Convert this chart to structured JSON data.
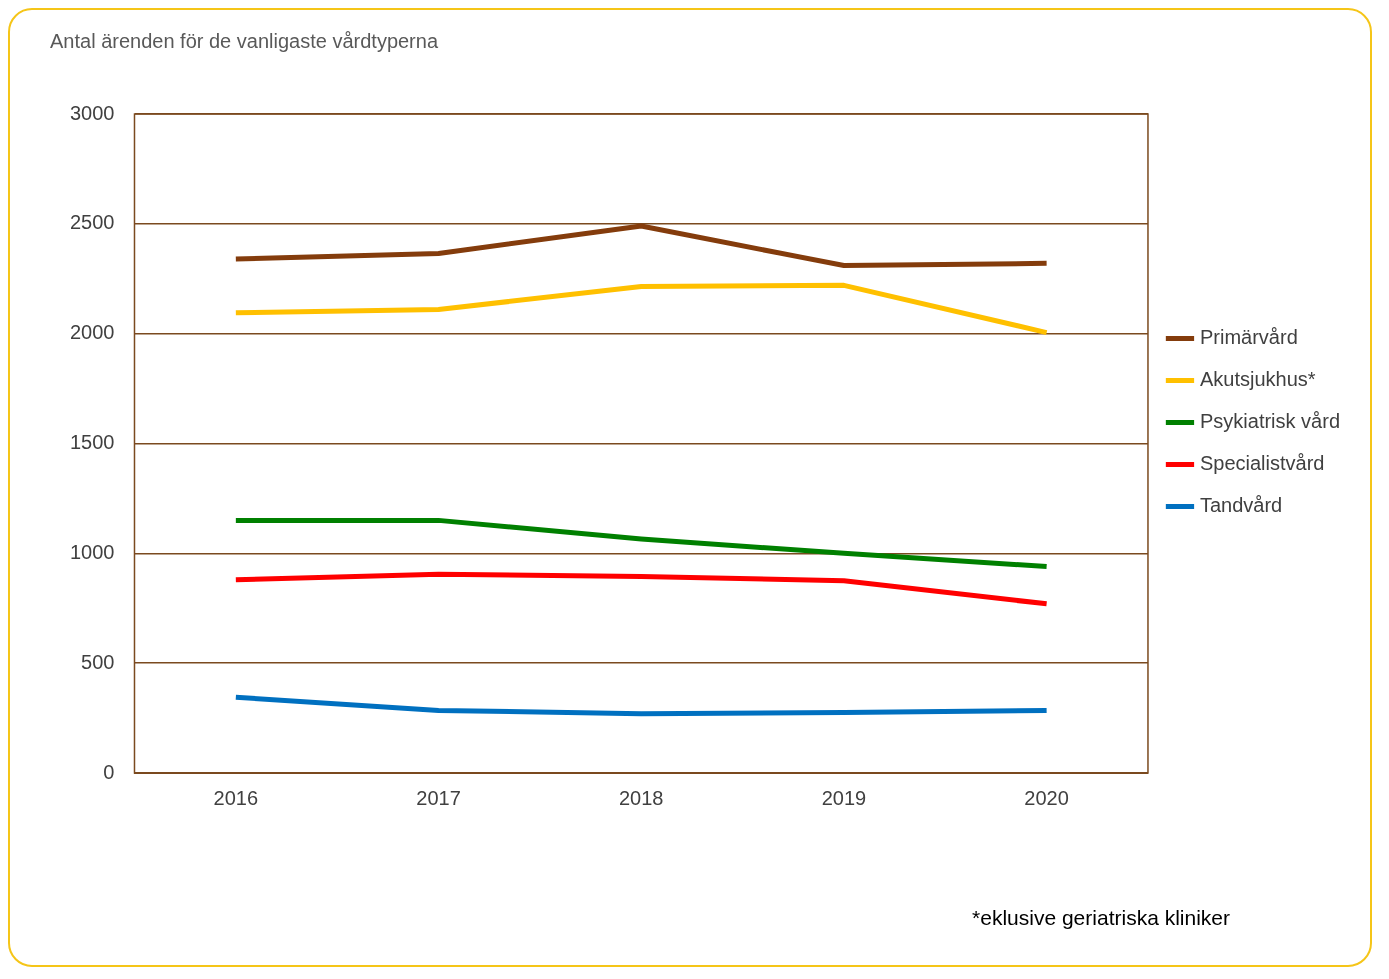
{
  "chart_data": {
    "type": "line",
    "title": "Antal ärenden för de vanligaste vårdtyperna",
    "categories": [
      "2016",
      "2017",
      "2018",
      "2019",
      "2020"
    ],
    "series": [
      {
        "name": "Primärvård",
        "color": "#843c0c",
        "values": [
          2340,
          2365,
          2490,
          2310,
          2320
        ]
      },
      {
        "name": "Akutsjukhus*",
        "color": "#ffc000",
        "values": [
          2095,
          2110,
          2215,
          2220,
          2005
        ]
      },
      {
        "name": "Psykiatrisk vård",
        "color": "#008000",
        "values": [
          1150,
          1150,
          1065,
          1000,
          940
        ]
      },
      {
        "name": "Specialistvård",
        "color": "#ff0000",
        "values": [
          880,
          905,
          895,
          875,
          770
        ]
      },
      {
        "name": "Tandvård",
        "color": "#0070c0",
        "values": [
          345,
          285,
          270,
          275,
          285
        ]
      }
    ],
    "ylim": [
      0,
      3000
    ],
    "yticks": [
      0,
      500,
      1000,
      1500,
      2000,
      2500,
      3000
    ],
    "grid": "y",
    "legend": "right",
    "marker": "none",
    "line_style": "solid",
    "annotations": [
      "*eklusive geriatriska kliniker"
    ]
  }
}
